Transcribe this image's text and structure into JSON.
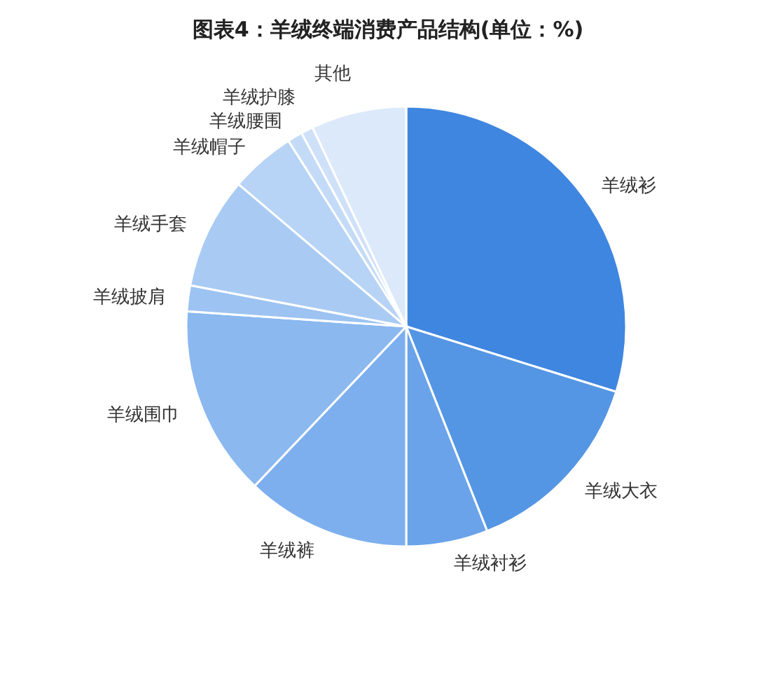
{
  "chart_data": {
    "type": "pie",
    "title": "图表4：羊绒终端消费产品结构(单位：%)",
    "categories": [
      "羊绒衫",
      "羊绒大衣",
      "羊绒衬衫",
      "羊绒裤",
      "羊绒围巾",
      "羊绒披肩",
      "羊绒手套",
      "羊绒帽子",
      "羊绒腰围",
      "羊绒护膝",
      "其他"
    ],
    "values": [
      29.8,
      14.2,
      6,
      12.1,
      14,
      1.9,
      8.2,
      4.8,
      1.1,
      0.9,
      7.0
    ],
    "colors": [
      "#3f86e0",
      "#5596e4",
      "#6aa3ea",
      "#7dafee",
      "#8ab8ef",
      "#9cc3f2",
      "#a9cbf3",
      "#b7d3f5",
      "#c3dbf6",
      "#cfe1f8",
      "#dce9fa"
    ],
    "legend": false
  }
}
